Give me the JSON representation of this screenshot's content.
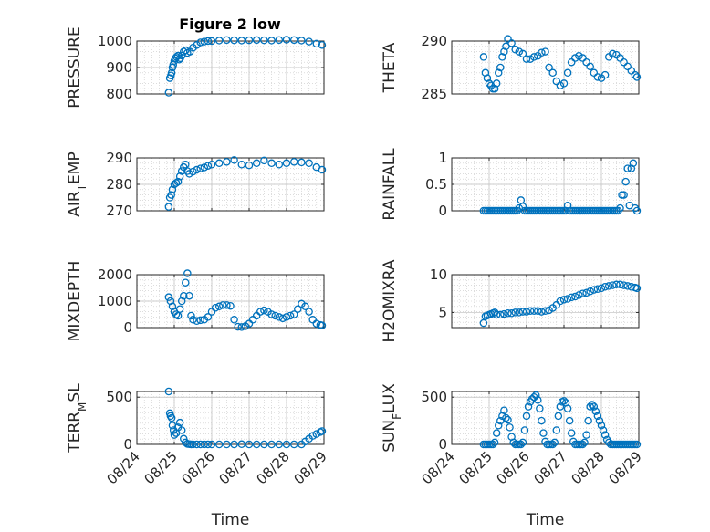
{
  "figure_title": "Figure 2 low",
  "colors": {
    "marker": "#0072BD",
    "axis": "#262626",
    "grid": "#c8c8c8"
  },
  "chart_data": [
    {
      "type": "scatter",
      "ylabel": "PRESSURE",
      "xlabel": "",
      "xlim": [
        0,
        5
      ],
      "ylim": [
        800,
        1000
      ],
      "yticks": [
        800,
        900,
        1000
      ],
      "ytick_labels": [
        "800",
        "900",
        "1000"
      ],
      "xticks": [
        0,
        1,
        2,
        3,
        4,
        5
      ],
      "xtick_labels": [],
      "grid": true,
      "minor_grid": true,
      "x": [
        0.85,
        0.88,
        0.91,
        0.93,
        0.95,
        0.97,
        1.0,
        1.03,
        1.06,
        1.1,
        1.13,
        1.16,
        1.2,
        1.25,
        1.3,
        1.35,
        1.42,
        1.5,
        1.6,
        1.7,
        1.8,
        1.9,
        2.0,
        2.2,
        2.4,
        2.6,
        2.8,
        3.0,
        3.2,
        3.4,
        3.6,
        3.8,
        4.0,
        4.2,
        4.4,
        4.6,
        4.8,
        4.95
      ],
      "y": [
        805,
        860,
        870,
        880,
        900,
        910,
        925,
        935,
        940,
        945,
        930,
        935,
        945,
        960,
        965,
        955,
        960,
        975,
        985,
        995,
        998,
        1000,
        1000,
        1002,
        1004,
        1003,
        1002,
        1003,
        1004,
        1003,
        1002,
        1004,
        1005,
        1004,
        1002,
        998,
        990,
        985
      ]
    },
    {
      "type": "scatter",
      "ylabel": "THETA",
      "xlabel": "",
      "xlim": [
        0,
        5
      ],
      "ylim": [
        285,
        290
      ],
      "yticks": [
        285,
        290
      ],
      "ytick_labels": [
        "285",
        "290"
      ],
      "xticks": [
        0,
        1,
        2,
        3,
        4,
        5
      ],
      "xtick_labels": [],
      "grid": true,
      "minor_grid": true,
      "x": [
        0.85,
        0.9,
        0.95,
        1.0,
        1.05,
        1.1,
        1.15,
        1.2,
        1.25,
        1.3,
        1.35,
        1.4,
        1.45,
        1.5,
        1.6,
        1.7,
        1.8,
        1.9,
        2.0,
        2.1,
        2.2,
        2.3,
        2.4,
        2.5,
        2.6,
        2.7,
        2.8,
        2.9,
        3.0,
        3.1,
        3.2,
        3.3,
        3.4,
        3.5,
        3.6,
        3.7,
        3.8,
        3.9,
        4.0,
        4.1,
        4.2,
        4.3,
        4.4,
        4.5,
        4.6,
        4.7,
        4.8,
        4.9,
        4.95
      ],
      "y": [
        288.5,
        287.0,
        286.5,
        286.0,
        285.8,
        285.5,
        285.5,
        286.0,
        287.0,
        287.5,
        288.5,
        289.0,
        289.5,
        290.2,
        289.8,
        289.2,
        289.0,
        288.8,
        288.3,
        288.3,
        288.5,
        288.6,
        288.9,
        289.0,
        287.5,
        287.0,
        286.2,
        285.8,
        286.0,
        287.0,
        288.0,
        288.4,
        288.6,
        288.4,
        288.0,
        287.6,
        287.0,
        286.6,
        286.5,
        286.8,
        288.5,
        288.8,
        288.7,
        288.4,
        288.0,
        287.6,
        287.2,
        286.8,
        286.6
      ]
    },
    {
      "type": "scatter",
      "ylabel": "AIR_TEMP",
      "ylabel_main": "AIR",
      "ylabel_sub": "T",
      "ylabel_rest": "EMP",
      "xlabel": "",
      "xlim": [
        0,
        5
      ],
      "ylim": [
        270,
        290
      ],
      "yticks": [
        270,
        280,
        290
      ],
      "ytick_labels": [
        "270",
        "280",
        "290"
      ],
      "xticks": [
        0,
        1,
        2,
        3,
        4,
        5
      ],
      "xtick_labels": [],
      "grid": true,
      "minor_grid": true,
      "x": [
        0.85,
        0.88,
        0.92,
        0.95,
        1.0,
        1.05,
        1.1,
        1.15,
        1.2,
        1.25,
        1.3,
        1.35,
        1.4,
        1.5,
        1.6,
        1.7,
        1.8,
        1.9,
        2.0,
        2.2,
        2.4,
        2.6,
        2.8,
        3.0,
        3.2,
        3.4,
        3.6,
        3.8,
        4.0,
        4.2,
        4.4,
        4.6,
        4.8,
        4.95
      ],
      "y": [
        271.5,
        275,
        276,
        278,
        280,
        280.5,
        281,
        283,
        285,
        286.5,
        287.5,
        285,
        284,
        284.8,
        285.5,
        286.0,
        286.4,
        287.0,
        287.5,
        288.0,
        288.5,
        289.2,
        287.5,
        287.2,
        288.0,
        289.0,
        288.0,
        287.5,
        288.0,
        288.5,
        288.3,
        288.0,
        286.5,
        285.5
      ]
    },
    {
      "type": "scatter",
      "ylabel": "RAINFALL",
      "xlabel": "",
      "xlim": [
        0,
        5
      ],
      "ylim": [
        0,
        1
      ],
      "yticks": [
        0,
        0.5,
        1
      ],
      "ytick_labels": [
        "0",
        "0.5",
        "1"
      ],
      "xticks": [
        0,
        1,
        2,
        3,
        4,
        5
      ],
      "xtick_labels": [],
      "grid": true,
      "minor_grid": true,
      "x": [
        0.85,
        0.9,
        0.95,
        1.0,
        1.05,
        1.1,
        1.15,
        1.2,
        1.25,
        1.3,
        1.35,
        1.4,
        1.45,
        1.5,
        1.55,
        1.6,
        1.65,
        1.7,
        1.75,
        1.8,
        1.85,
        1.9,
        1.95,
        2.0,
        2.05,
        2.1,
        2.15,
        2.2,
        2.25,
        2.3,
        2.35,
        2.4,
        2.45,
        2.5,
        2.55,
        2.6,
        2.65,
        2.7,
        2.75,
        2.8,
        2.85,
        2.9,
        2.95,
        3.0,
        3.05,
        3.1,
        3.15,
        3.2,
        3.25,
        3.3,
        3.35,
        3.4,
        3.45,
        3.5,
        3.55,
        3.6,
        3.65,
        3.7,
        3.75,
        3.8,
        3.85,
        3.9,
        3.95,
        4.0,
        4.05,
        4.1,
        4.15,
        4.2,
        4.25,
        4.3,
        4.35,
        4.4,
        4.45,
        4.5,
        4.55,
        4.6,
        4.65,
        4.7,
        4.75,
        4.8,
        4.85,
        4.9,
        4.95
      ],
      "y": [
        0,
        0,
        0,
        0,
        0,
        0,
        0,
        0,
        0,
        0,
        0,
        0,
        0,
        0,
        0,
        0,
        0,
        0,
        0,
        0.05,
        0.2,
        0.08,
        0,
        0,
        0,
        0,
        0,
        0,
        0,
        0,
        0,
        0,
        0,
        0,
        0,
        0,
        0,
        0,
        0,
        0,
        0,
        0,
        0,
        0,
        0,
        0.1,
        0,
        0,
        0,
        0,
        0,
        0,
        0,
        0,
        0,
        0,
        0,
        0,
        0,
        0,
        0,
        0,
        0,
        0,
        0,
        0,
        0,
        0,
        0,
        0,
        0,
        0,
        0,
        0.05,
        0.3,
        0.3,
        0.55,
        0.8,
        0.1,
        0.8,
        0.9,
        0.05,
        0
      ]
    },
    {
      "type": "scatter",
      "ylabel": "MIXDEPTH",
      "xlabel": "",
      "xlim": [
        0,
        5
      ],
      "ylim": [
        0,
        2000
      ],
      "yticks": [
        0,
        1000,
        2000
      ],
      "ytick_labels": [
        "0",
        "1000",
        "2000"
      ],
      "xticks": [
        0,
        1,
        2,
        3,
        4,
        5
      ],
      "xtick_labels": [],
      "grid": true,
      "minor_grid": true,
      "x": [
        0.85,
        0.9,
        0.95,
        1.0,
        1.05,
        1.1,
        1.15,
        1.2,
        1.25,
        1.3,
        1.35,
        1.4,
        1.45,
        1.5,
        1.6,
        1.7,
        1.8,
        1.9,
        2.0,
        2.1,
        2.2,
        2.3,
        2.4,
        2.5,
        2.6,
        2.7,
        2.8,
        2.9,
        3.0,
        3.1,
        3.2,
        3.3,
        3.4,
        3.5,
        3.6,
        3.7,
        3.8,
        3.9,
        4.0,
        4.1,
        4.2,
        4.3,
        4.4,
        4.5,
        4.6,
        4.7,
        4.8,
        4.9,
        4.95
      ],
      "y": [
        1150,
        1000,
        800,
        600,
        500,
        450,
        700,
        1000,
        1200,
        1700,
        2050,
        1200,
        450,
        300,
        250,
        280,
        300,
        400,
        600,
        750,
        800,
        850,
        850,
        820,
        300,
        30,
        20,
        50,
        150,
        300,
        450,
        600,
        650,
        600,
        500,
        450,
        400,
        350,
        400,
        450,
        500,
        700,
        900,
        800,
        600,
        300,
        150,
        100,
        80
      ]
    },
    {
      "type": "scatter",
      "ylabel": "H2OMIXRA",
      "xlabel": "",
      "xlim": [
        0,
        5
      ],
      "ylim": [
        3,
        10
      ],
      "yticks": [
        5,
        10
      ],
      "ytick_labels": [
        "5",
        "10"
      ],
      "xticks": [
        0,
        1,
        2,
        3,
        4,
        5
      ],
      "xtick_labels": [],
      "grid": true,
      "minor_grid": true,
      "x": [
        0.85,
        0.9,
        0.95,
        1.0,
        1.05,
        1.1,
        1.15,
        1.2,
        1.3,
        1.4,
        1.5,
        1.6,
        1.7,
        1.8,
        1.9,
        2.0,
        2.1,
        2.2,
        2.3,
        2.4,
        2.5,
        2.6,
        2.7,
        2.8,
        2.9,
        3.0,
        3.1,
        3.2,
        3.3,
        3.4,
        3.5,
        3.6,
        3.7,
        3.8,
        3.9,
        4.0,
        4.1,
        4.2,
        4.3,
        4.4,
        4.5,
        4.6,
        4.7,
        4.8,
        4.9,
        4.95
      ],
      "y": [
        3.6,
        4.5,
        4.6,
        4.7,
        4.8,
        4.9,
        5.0,
        4.7,
        4.7,
        4.8,
        4.9,
        4.9,
        5.0,
        5.0,
        5.1,
        5.1,
        5.2,
        5.2,
        5.2,
        5.1,
        5.2,
        5.3,
        5.6,
        6.0,
        6.5,
        6.7,
        6.8,
        7.0,
        7.1,
        7.3,
        7.5,
        7.6,
        7.8,
        8.0,
        8.1,
        8.2,
        8.4,
        8.5,
        8.6,
        8.7,
        8.7,
        8.6,
        8.5,
        8.4,
        8.3,
        8.2
      ]
    },
    {
      "type": "scatter",
      "ylabel": "TERR_MSL",
      "ylabel_main": "TERR",
      "ylabel_sub": "M",
      "ylabel_rest": "SL",
      "xlabel": "Time",
      "xlim": [
        0,
        5
      ],
      "ylim": [
        0,
        560
      ],
      "yticks": [
        0,
        500
      ],
      "ytick_labels": [
        "0",
        "500"
      ],
      "xticks": [
        0,
        1,
        2,
        3,
        4,
        5
      ],
      "xtick_labels": [
        "08/24",
        "08/25",
        "08/26",
        "08/27",
        "08/28",
        "08/29"
      ],
      "grid": true,
      "minor_grid": true,
      "x": [
        0.85,
        0.88,
        0.9,
        0.93,
        0.95,
        0.98,
        1.0,
        1.05,
        1.1,
        1.15,
        1.2,
        1.25,
        1.3,
        1.35,
        1.4,
        1.45,
        1.5,
        1.6,
        1.7,
        1.8,
        1.9,
        2.0,
        2.2,
        2.4,
        2.6,
        2.8,
        3.0,
        3.2,
        3.4,
        3.6,
        3.8,
        4.0,
        4.2,
        4.4,
        4.5,
        4.6,
        4.7,
        4.8,
        4.9,
        4.95
      ],
      "y": [
        560,
        330,
        300,
        280,
        200,
        150,
        100,
        120,
        180,
        230,
        150,
        60,
        20,
        5,
        2,
        0,
        0,
        0,
        0,
        0,
        0,
        0,
        0,
        0,
        0,
        2,
        0,
        0,
        0,
        0,
        0,
        0,
        0,
        0,
        30,
        60,
        90,
        110,
        130,
        140
      ]
    },
    {
      "type": "scatter",
      "ylabel": "SUN_FLUX",
      "ylabel_main": "SUN",
      "ylabel_sub": "F",
      "ylabel_rest": "LUX",
      "xlabel": "Time",
      "xlim": [
        0,
        5
      ],
      "ylim": [
        0,
        560
      ],
      "yticks": [
        0,
        500
      ],
      "ytick_labels": [
        "0",
        "500"
      ],
      "xticks": [
        0,
        1,
        2,
        3,
        4,
        5
      ],
      "xtick_labels": [
        "08/24",
        "08/25",
        "08/26",
        "08/27",
        "08/28",
        "08/29"
      ],
      "grid": true,
      "minor_grid": true,
      "x": [
        0.85,
        0.9,
        0.95,
        1.0,
        1.05,
        1.1,
        1.15,
        1.2,
        1.25,
        1.3,
        1.35,
        1.4,
        1.45,
        1.5,
        1.55,
        1.6,
        1.65,
        1.7,
        1.75,
        1.8,
        1.85,
        1.9,
        1.95,
        2.0,
        2.05,
        2.1,
        2.15,
        2.2,
        2.25,
        2.3,
        2.35,
        2.4,
        2.45,
        2.5,
        2.55,
        2.6,
        2.65,
        2.7,
        2.75,
        2.8,
        2.85,
        2.9,
        2.95,
        3.0,
        3.05,
        3.1,
        3.15,
        3.2,
        3.25,
        3.3,
        3.35,
        3.4,
        3.45,
        3.5,
        3.55,
        3.6,
        3.65,
        3.7,
        3.75,
        3.8,
        3.85,
        3.9,
        3.95,
        4.0,
        4.05,
        4.1,
        4.15,
        4.2,
        4.25,
        4.3,
        4.35,
        4.4,
        4.45,
        4.5,
        4.55,
        4.6,
        4.65,
        4.7,
        4.75,
        4.8,
        4.85,
        4.9,
        4.95
      ],
      "y": [
        0,
        0,
        0,
        0,
        0,
        0,
        20,
        120,
        200,
        250,
        300,
        360,
        280,
        260,
        180,
        80,
        20,
        0,
        0,
        0,
        0,
        20,
        150,
        300,
        400,
        450,
        480,
        500,
        520,
        470,
        380,
        250,
        120,
        30,
        0,
        0,
        0,
        0,
        20,
        150,
        300,
        400,
        450,
        460,
        440,
        380,
        250,
        120,
        30,
        0,
        0,
        0,
        0,
        0,
        20,
        100,
        250,
        400,
        420,
        400,
        350,
        300,
        250,
        200,
        150,
        100,
        50,
        20,
        0,
        0,
        0,
        0,
        0,
        0,
        0,
        0,
        0,
        0,
        0,
        0,
        0,
        0,
        0
      ]
    }
  ]
}
